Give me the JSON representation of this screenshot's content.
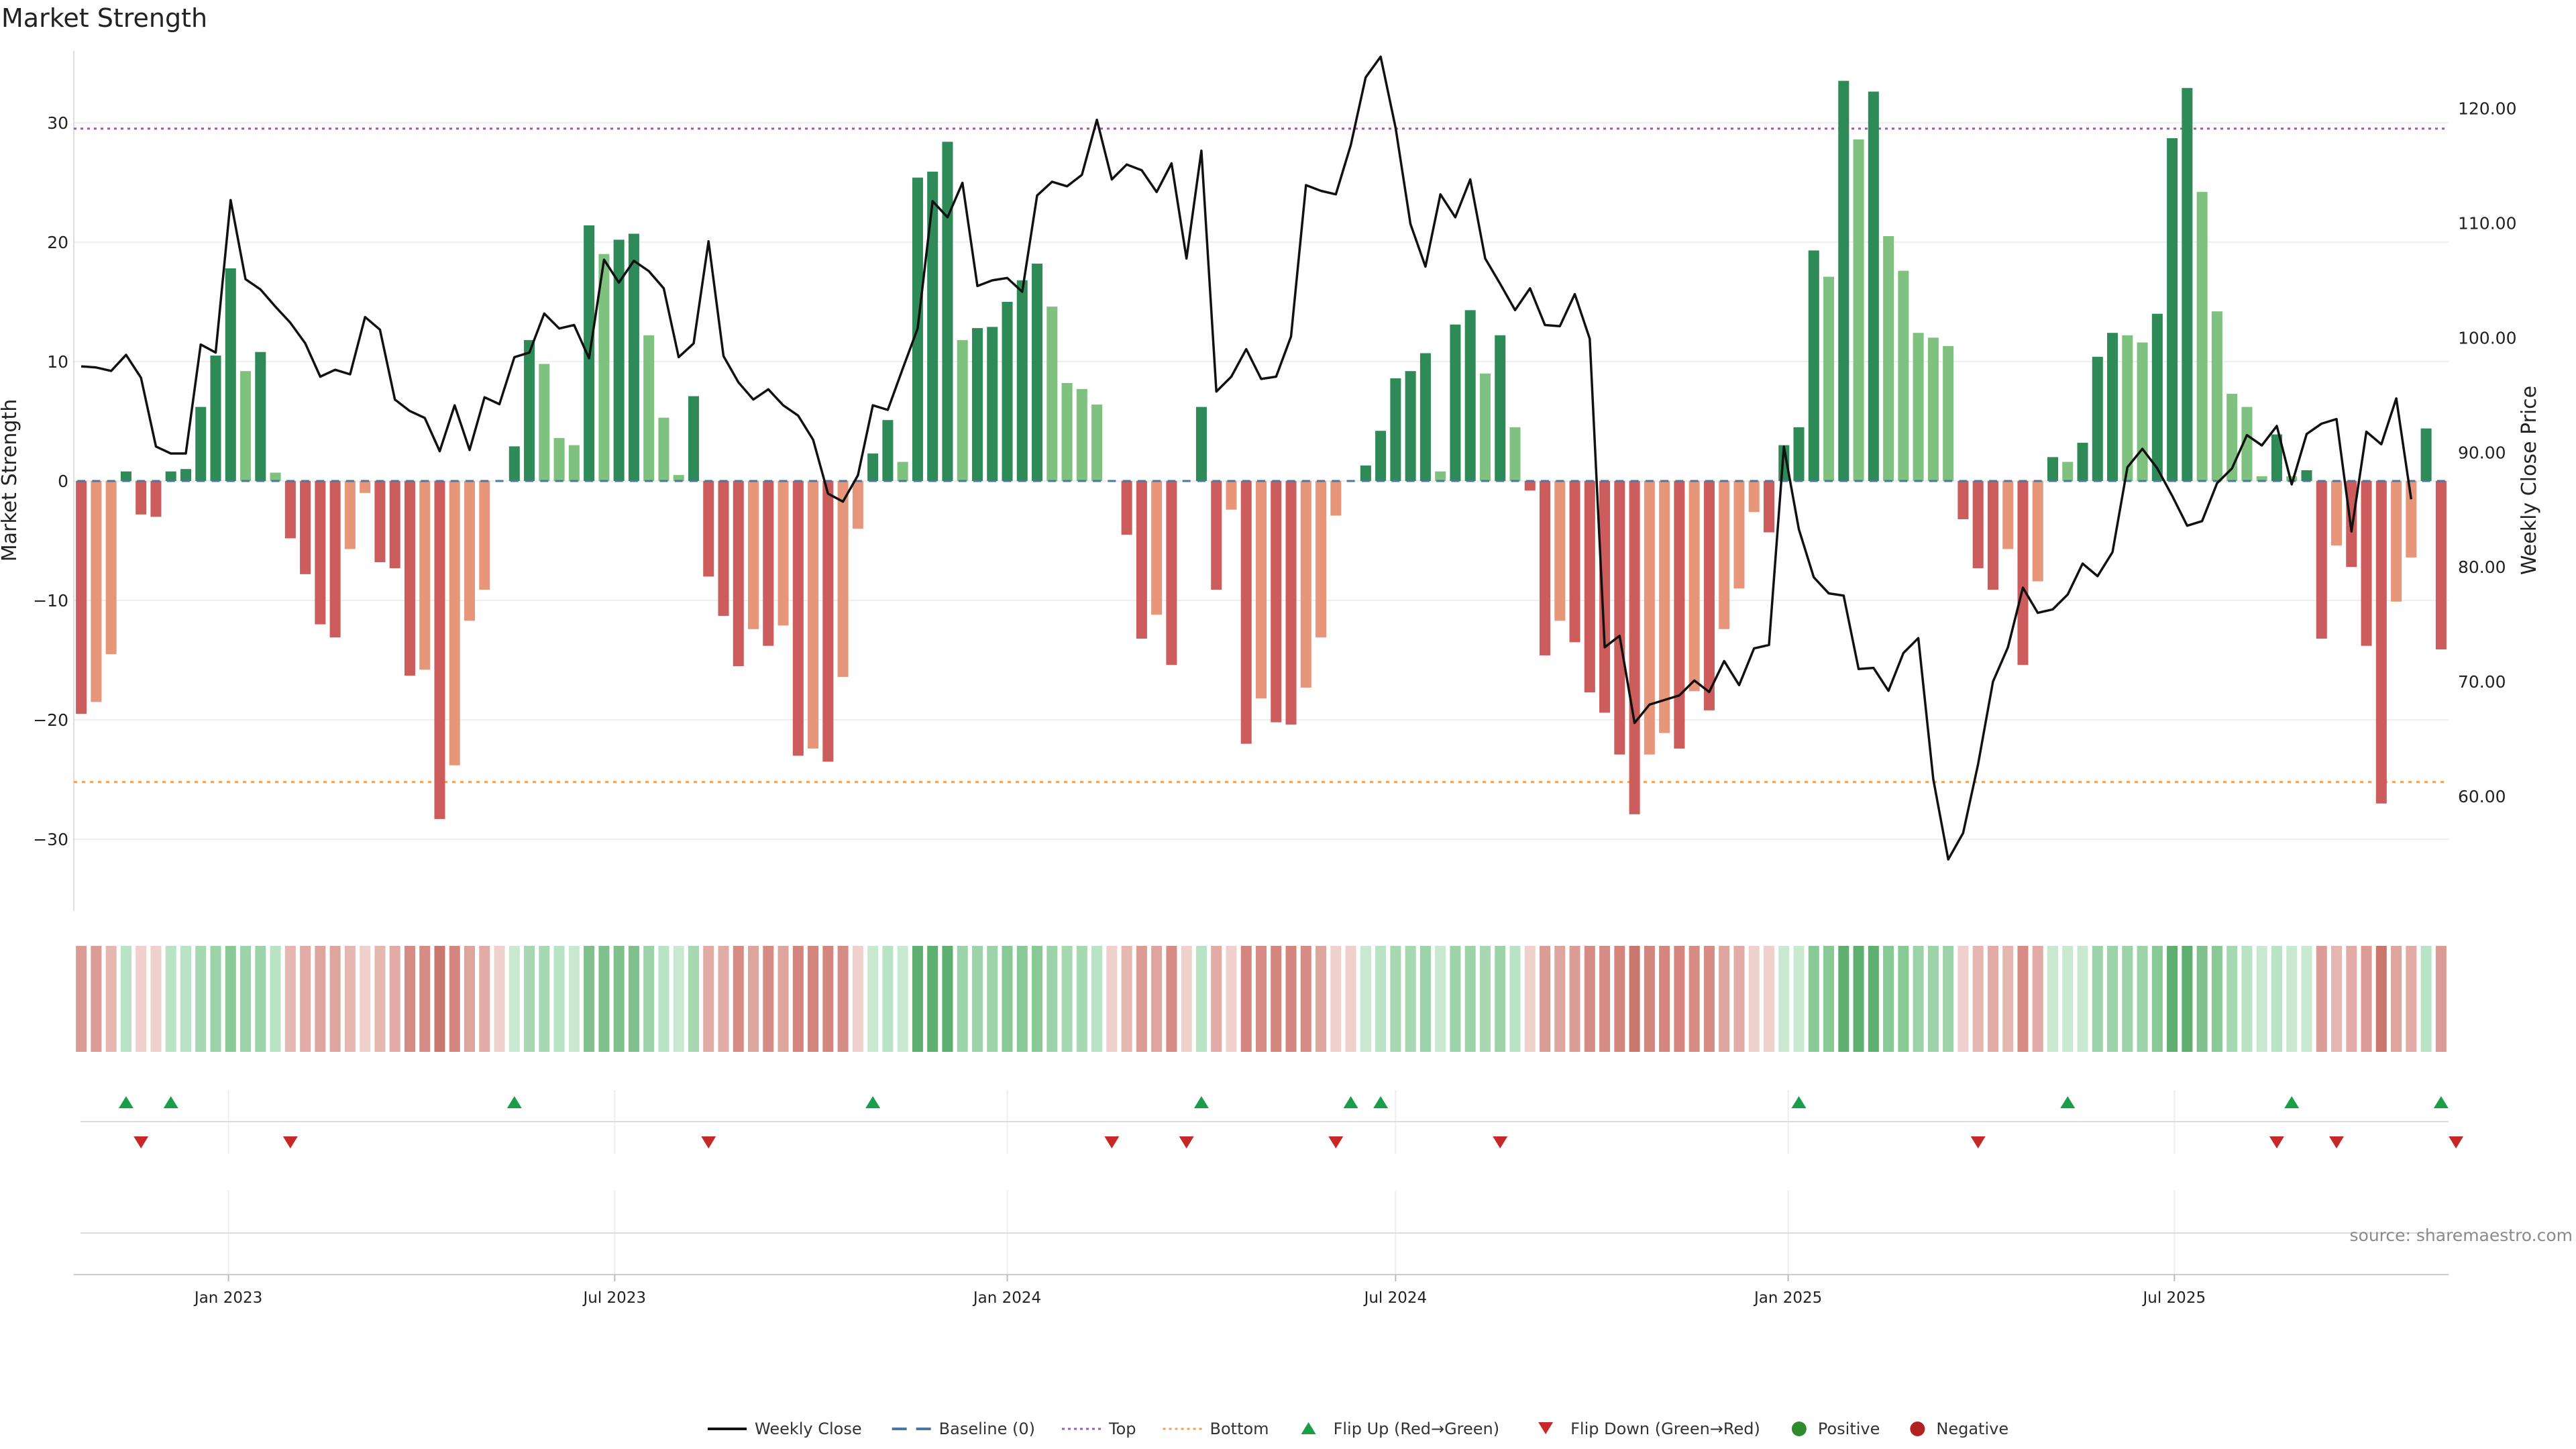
{
  "chart_data": {
    "type": "bar",
    "title": "Market Strength",
    "ylabel": "Market Strength",
    "y2label": "Weekly Close Price",
    "ylim": [
      -36,
      36
    ],
    "y2lim": [
      50,
      125
    ],
    "yticks": [
      -30,
      -20,
      -10,
      0,
      10,
      20,
      30
    ],
    "y2ticks": [
      "60.00",
      "70.00",
      "80.00",
      "90.00",
      "100.00",
      "110.00",
      "120.00"
    ],
    "y2tick_values": [
      60,
      70,
      80,
      90,
      100,
      110,
      120
    ],
    "x_start": "2022-10-24",
    "x_step_days": 7,
    "date_ticks": [
      {
        "date": "2023-01-01",
        "label": "Jan 2023"
      },
      {
        "date": "2023-07-01",
        "label": "Jul 2023"
      },
      {
        "date": "2024-01-01",
        "label": "Jan 2024"
      },
      {
        "date": "2024-07-01",
        "label": "Jul 2024"
      },
      {
        "date": "2025-01-01",
        "label": "Jan 2025"
      },
      {
        "date": "2025-07-01",
        "label": "Jul 2025"
      }
    ],
    "top_line": 29.5,
    "bottom_line": -25.2,
    "strength": [
      -19.5,
      -18.5,
      -14.5,
      0.8,
      -2.8,
      -3,
      0.8,
      1,
      6.2,
      10.5,
      17.8,
      9.2,
      10.8,
      0.7,
      -4.8,
      -7.8,
      -12,
      -13.1,
      -5.7,
      -1,
      -6.8,
      -7.3,
      -16.3,
      -15.8,
      -28.3,
      -23.8,
      -11.7,
      -9.1,
      0,
      2.9,
      11.8,
      9.8,
      3.6,
      3,
      21.4,
      19,
      20.2,
      20.7,
      12.2,
      5.3,
      0.5,
      7.1,
      -8,
      -11.3,
      -15.5,
      -12.4,
      -13.8,
      -12.1,
      -23,
      -22.4,
      -23.5,
      -16.4,
      -4,
      2.3,
      5.1,
      1.6,
      25.4,
      25.9,
      28.4,
      11.8,
      12.8,
      12.9,
      15,
      16.8,
      18.2,
      14.6,
      8.2,
      7.7,
      6.4,
      0,
      -4.5,
      -13.2,
      -11.2,
      -15.4,
      0,
      6.2,
      -9.1,
      -2.4,
      -22,
      -18.2,
      -20.2,
      -20.4,
      -17.3,
      -13.1,
      -2.9,
      0,
      1.3,
      4.2,
      8.6,
      9.2,
      10.7,
      0.8,
      13.1,
      14.3,
      9,
      12.2,
      4.5,
      -0.8,
      -14.6,
      -11.7,
      -13.5,
      -17.7,
      -19.4,
      -22.9,
      -27.9,
      -22.9,
      -21.1,
      -22.4,
      -17.6,
      -19.2,
      -12.4,
      -9,
      -2.6,
      -4.3,
      3,
      4.5,
      19.3,
      17.1,
      33.5,
      28.6,
      32.6,
      20.5,
      17.6,
      12.4,
      12,
      11.3,
      -3.2,
      -7.3,
      -9.1,
      -5.7,
      -15.4,
      -8.4,
      2,
      1.6,
      3.2,
      10.4,
      12.4,
      12.2,
      11.6,
      14,
      28.7,
      32.9,
      24.2,
      14.2,
      7.3,
      6.2,
      0.4,
      3.9,
      0.4,
      0.9,
      -13.2,
      -5.4,
      -7.2,
      -13.8,
      -27,
      -10.1,
      -6.4,
      4.4,
      -14.1
    ],
    "close": [
      97.5,
      97.4,
      97.1,
      98.5,
      96.5,
      90.5,
      89.9,
      89.9,
      99.4,
      98.7,
      112,
      105.1,
      104.2,
      102.7,
      101.3,
      99.5,
      96.6,
      97.2,
      96.8,
      101.8,
      100.7,
      94.6,
      93.6,
      93,
      90.1,
      94.1,
      90.2,
      94.8,
      94.2,
      98.3,
      98.7,
      102.1,
      100.8,
      101.1,
      98.2,
      106.8,
      104.8,
      106.7,
      105.8,
      104.3,
      98.3,
      99.5,
      108.4,
      98.4,
      96.1,
      94.6,
      95.5,
      94.1,
      93.2,
      91.1,
      86.4,
      85.7,
      88,
      94.1,
      93.7,
      97.3,
      100.8,
      111.9,
      110.5,
      113.5,
      104.5,
      105,
      105.2,
      104,
      112.4,
      113.6,
      113.2,
      114.2,
      119,
      113.8,
      115.1,
      114.6,
      112.7,
      115.2,
      106.9,
      116.3,
      95.3,
      96.6,
      99,
      96.4,
      96.6,
      100.1,
      113.3,
      112.8,
      112.5,
      116.8,
      122.7,
      124.5,
      118.3,
      109.9,
      106.2,
      112.5,
      110.5,
      113.8,
      106.9,
      104.7,
      102.4,
      104.3,
      101.1,
      101,
      103.8,
      99.9,
      73,
      74,
      66.4,
      68,
      68.4,
      68.8,
      70.1,
      69.1,
      71.8,
      69.7,
      72.9,
      73.2,
      90.5,
      83.3,
      79.1,
      77.7,
      77.5,
      71.1,
      71.2,
      69.2,
      72.5,
      73.8,
      61.5,
      54.5,
      56.8,
      62.8,
      70,
      73,
      78.2,
      76,
      76.3,
      77.6,
      80.3,
      79.2,
      81.3,
      88.7,
      90.3,
      88.6,
      86.2,
      83.6,
      84,
      87.3,
      88.6,
      91.5,
      90.6,
      92.3,
      87.2,
      91.6,
      92.5,
      92.9,
      83.1,
      91.8,
      90.7,
      94.7,
      85.9
    ],
    "heat_colors": [
      "#dc9c96",
      "#dc9c96",
      "#e6b6b1",
      "#b9e3c5",
      "#f0d0cd",
      "#f0d0cd",
      "#b9e3c5",
      "#b9e3c5",
      "#a6d8b2",
      "#9dd3a9",
      "#88c996",
      "#9dd3a9",
      "#9dd3a9",
      "#b9e3c5",
      "#e6b6b1",
      "#e2aba5",
      "#dea49e",
      "#dea49e",
      "#e6b6b1",
      "#f0d0cd",
      "#e6b6b1",
      "#e2aba5",
      "#d68c85",
      "#d68c85",
      "#c9766d",
      "#d3857e",
      "#dea49e",
      "#e2aba5",
      "#f0d0cd",
      "#c8e9d0",
      "#a6d8b2",
      "#a6d8b2",
      "#b9e3c5",
      "#c8e9d0",
      "#7fc08d",
      "#7fc08d",
      "#7fc08d",
      "#7fc08d",
      "#9dd3a9",
      "#b9e3c5",
      "#c8e9d0",
      "#a6d8b2",
      "#e2aba5",
      "#e2aba5",
      "#d68c85",
      "#dea49e",
      "#d68c85",
      "#dea49e",
      "#d3857e",
      "#d3857e",
      "#d3857e",
      "#d68c85",
      "#f0d0cd",
      "#c8e9d0",
      "#b9e3c5",
      "#c8e9d0",
      "#5fb070",
      "#5fb070",
      "#5fb070",
      "#9dd3a9",
      "#9dd3a9",
      "#9dd3a9",
      "#88c996",
      "#88c996",
      "#88c996",
      "#9dd3a9",
      "#a6d8b2",
      "#a6d8b2",
      "#b9e3c5",
      "#f0d0cd",
      "#e6b6b1",
      "#dc9c96",
      "#dea49e",
      "#d68c85",
      "#f0d0cd",
      "#b9e3c5",
      "#e2aba5",
      "#f0d0cd",
      "#d3857e",
      "#d68c85",
      "#d3857e",
      "#d3857e",
      "#d68c85",
      "#dea49e",
      "#f0d0cd",
      "#f0d0cd",
      "#c8e9d0",
      "#b9e3c5",
      "#a6d8b2",
      "#a6d8b2",
      "#9dd3a9",
      "#c8e9d0",
      "#9dd3a9",
      "#9dd3a9",
      "#a6d8b2",
      "#9dd3a9",
      "#b9e3c5",
      "#f0d0cd",
      "#dc9c96",
      "#dea49e",
      "#dc9c96",
      "#d68c85",
      "#d68c85",
      "#d3857e",
      "#c9766d",
      "#d3857e",
      "#d3857e",
      "#d3857e",
      "#d68c85",
      "#d68c85",
      "#dea49e",
      "#e2aba5",
      "#f0d0cd",
      "#f0d0cd",
      "#c8e9d0",
      "#c8e9d0",
      "#88c996",
      "#88c996",
      "#5fb070",
      "#5fb070",
      "#5fb070",
      "#88c996",
      "#88c996",
      "#9dd3a9",
      "#9dd3a9",
      "#9dd3a9",
      "#f0d0cd",
      "#e6b6b1",
      "#e2aba5",
      "#e6b6b1",
      "#d68c85",
      "#e2aba5",
      "#c8e9d0",
      "#c8e9d0",
      "#c8e9d0",
      "#9dd3a9",
      "#9dd3a9",
      "#9dd3a9",
      "#9dd3a9",
      "#88c996",
      "#5fb070",
      "#5fb070",
      "#7fc08d",
      "#88c996",
      "#a6d8b2",
      "#b9e3c5",
      "#c8e9d0",
      "#b9e3c5",
      "#c8e9d0",
      "#c8e9d0",
      "#dc9c96",
      "#e6b6b1",
      "#e2aba5",
      "#dc9c96",
      "#c9766d",
      "#dea49e",
      "#e2aba5",
      "#b9e3c5",
      "#dc9c96"
    ],
    "flip_up_weeks": [
      3,
      6,
      29,
      53,
      75,
      85,
      87,
      115,
      133,
      148,
      158
    ],
    "flip_down_weeks": [
      4,
      14,
      42,
      69,
      74,
      84,
      95,
      127,
      147,
      151,
      159
    ],
    "legend": [
      {
        "key": "close",
        "label": "Weekly Close",
        "color": "#111111"
      },
      {
        "key": "baseline",
        "label": "Baseline (0)",
        "color": "#4a78a0"
      },
      {
        "key": "top",
        "label": "Top",
        "color": "#9b59b6"
      },
      {
        "key": "bottom",
        "label": "Bottom",
        "color": "#f0a050"
      },
      {
        "key": "flipup",
        "label": "Flip Up (Red→Green)",
        "color": "#1a9e4a"
      },
      {
        "key": "flipdown",
        "label": "Flip Down (Green→Red)",
        "color": "#c62828"
      },
      {
        "key": "positive",
        "label": "Positive",
        "color": "#2e8b2e"
      },
      {
        "key": "negative",
        "label": "Negative",
        "color": "#b22222"
      }
    ],
    "source": "source: sharemaestro.com"
  }
}
